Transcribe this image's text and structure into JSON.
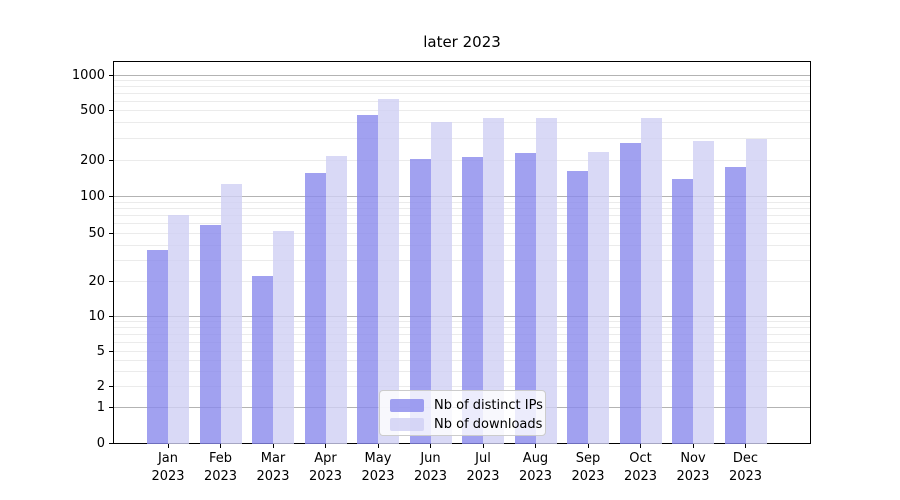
{
  "chart_data": {
    "type": "bar",
    "title": "later 2023",
    "categories": [
      "Jan 2023",
      "Feb 2023",
      "Mar 2023",
      "Apr 2023",
      "May 2023",
      "Jun 2023",
      "Jul 2023",
      "Aug 2023",
      "Sep 2023",
      "Oct 2023",
      "Nov 2023",
      "Dec 2023"
    ],
    "series": [
      {
        "name": "Nb of distinct IPs",
        "color": "#8a8aec",
        "values": [
          36,
          58,
          22,
          155,
          460,
          205,
          210,
          228,
          163,
          275,
          140,
          175
        ]
      },
      {
        "name": "Nb of downloads",
        "color": "#cfcff4",
        "values": [
          70,
          125,
          52,
          215,
          620,
          400,
          430,
          430,
          230,
          430,
          285,
          295
        ]
      }
    ],
    "ylabel": "",
    "xlabel": "",
    "yscale": "symlog",
    "yticks": [
      0,
      1,
      2,
      5,
      10,
      20,
      50,
      100,
      200,
      500,
      1000
    ],
    "ylim": [
      0,
      1300
    ],
    "grid": "horizontal major+minor",
    "legend_position": "lower center (inside axes)",
    "colors": {
      "major_grid": "#b3b3b3",
      "minor_grid": "#ebebeb",
      "spine": "#000000",
      "legend_border": "#cccccc"
    }
  }
}
